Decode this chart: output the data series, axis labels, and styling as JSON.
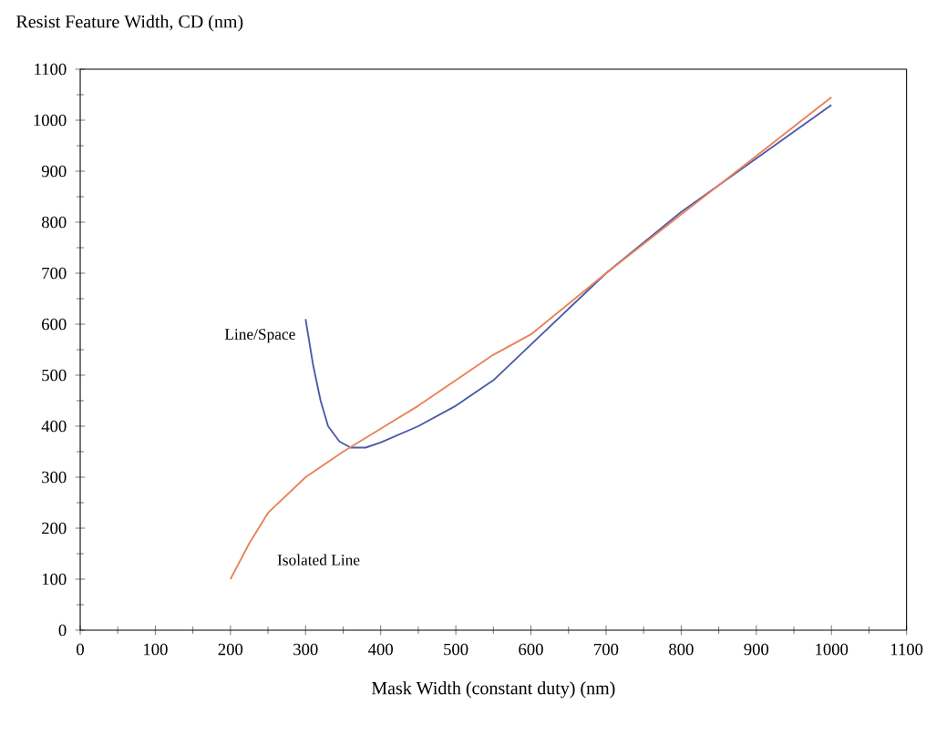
{
  "chart_data": {
    "type": "line",
    "ylabel": "Resist Feature Width, CD (nm)",
    "xlabel": "Mask Width (constant duty) (nm)",
    "xlim": [
      0,
      1100
    ],
    "ylim": [
      0,
      1100
    ],
    "xticks": [
      0,
      100,
      200,
      300,
      400,
      500,
      600,
      700,
      800,
      900,
      1000,
      1100
    ],
    "yticks": [
      0,
      100,
      200,
      300,
      400,
      500,
      600,
      700,
      800,
      900,
      1000,
      1100
    ],
    "legend": false,
    "grid": false,
    "marker": "none",
    "line_style": "solid",
    "series": [
      {
        "name": "Line/Space",
        "color": "#4a5aa8",
        "x": [
          300,
          310,
          320,
          330,
          345,
          360,
          380,
          400,
          450,
          500,
          550,
          600,
          700,
          800,
          900,
          1000
        ],
        "values": [
          610,
          520,
          450,
          400,
          370,
          358,
          358,
          368,
          400,
          440,
          490,
          560,
          700,
          820,
          925,
          1030
        ]
      },
      {
        "name": "Isolated Line",
        "color": "#e8825a",
        "x": [
          200,
          225,
          250,
          300,
          350,
          400,
          450,
          500,
          550,
          600,
          700,
          800,
          900,
          1000
        ],
        "values": [
          100,
          170,
          230,
          300,
          350,
          395,
          440,
          490,
          540,
          580,
          700,
          815,
          930,
          1045
        ]
      }
    ]
  }
}
